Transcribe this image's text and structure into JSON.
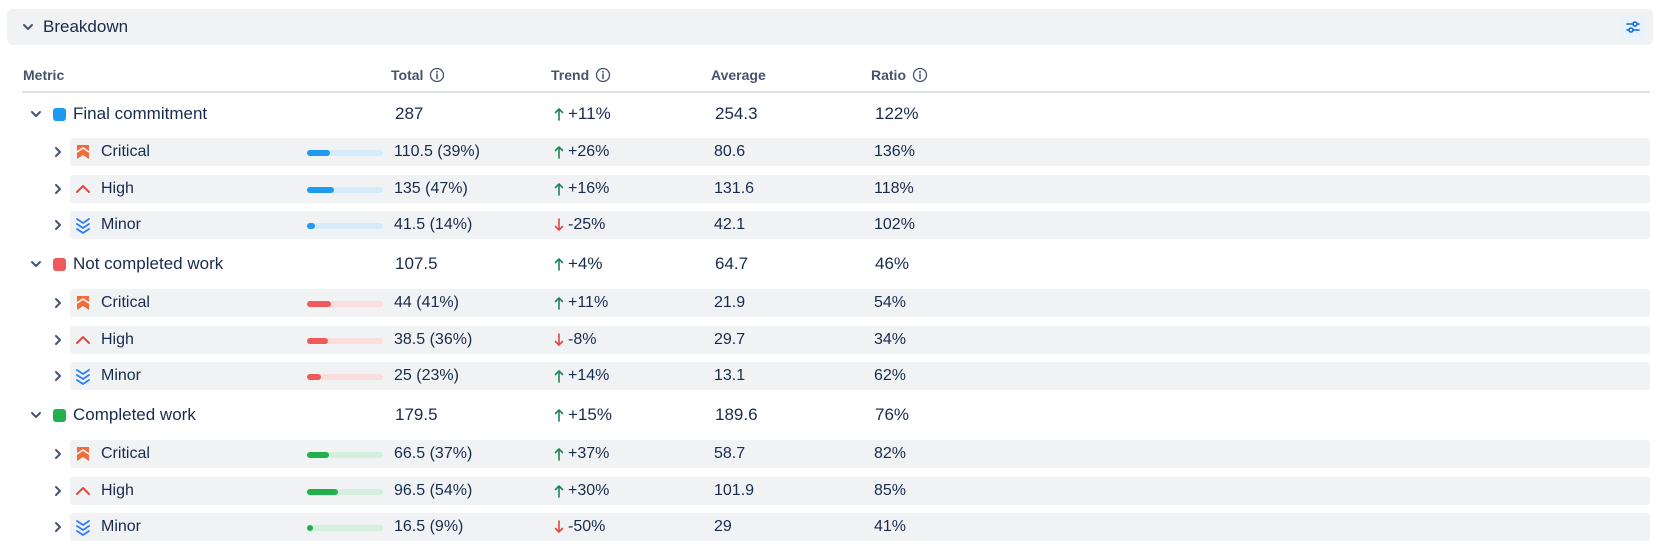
{
  "panel": {
    "title": "Breakdown",
    "settings_icon": "sliders-icon"
  },
  "columns": {
    "metric": "Metric",
    "total": "Total",
    "trend": "Trend",
    "average": "Average",
    "ratio": "Ratio"
  },
  "colors": {
    "blue": "#1d9bf0",
    "blue_track": "#d5ecfb",
    "red": "#ef5b5b",
    "red_track": "#fadede",
    "green": "#22b04b",
    "green_track": "#d4efdc",
    "trend_up": "#1f845a",
    "trend_down": "#e2483d",
    "critical_icon": "#f26b3a",
    "high_icon": "#e2483d",
    "minor_icon": "#2d7ff9"
  },
  "groups": [
    {
      "name": "Final commitment",
      "color": "blue",
      "total": "287",
      "trend": "+11%",
      "trend_dir": "up",
      "average": "254.3",
      "ratio": "122%",
      "rows": [
        {
          "priority": "Critical",
          "icon": "priority-critical-icon",
          "share": 0.39,
          "total": "110.5 (39%)",
          "trend": "+26%",
          "trend_dir": "up",
          "average": "80.6",
          "ratio": "136%"
        },
        {
          "priority": "High",
          "icon": "priority-high-icon",
          "share": 0.47,
          "total": "135 (47%)",
          "trend": "+16%",
          "trend_dir": "up",
          "average": "131.6",
          "ratio": "118%"
        },
        {
          "priority": "Minor",
          "icon": "priority-minor-icon",
          "share": 0.14,
          "total": "41.5 (14%)",
          "trend": "-25%",
          "trend_dir": "down",
          "average": "42.1",
          "ratio": "102%"
        }
      ]
    },
    {
      "name": "Not completed work",
      "color": "red",
      "total": "107.5",
      "trend": "+4%",
      "trend_dir": "up",
      "average": "64.7",
      "ratio": "46%",
      "rows": [
        {
          "priority": "Critical",
          "icon": "priority-critical-icon",
          "share": 0.41,
          "total": "44 (41%)",
          "trend": "+11%",
          "trend_dir": "up",
          "average": "21.9",
          "ratio": "54%"
        },
        {
          "priority": "High",
          "icon": "priority-high-icon",
          "share": 0.36,
          "total": "38.5 (36%)",
          "trend": "-8%",
          "trend_dir": "down",
          "average": "29.7",
          "ratio": "34%"
        },
        {
          "priority": "Minor",
          "icon": "priority-minor-icon",
          "share": 0.23,
          "total": "25 (23%)",
          "trend": "+14%",
          "trend_dir": "up",
          "average": "13.1",
          "ratio": "62%"
        }
      ]
    },
    {
      "name": "Completed work",
      "color": "green",
      "total": "179.5",
      "trend": "+15%",
      "trend_dir": "up",
      "average": "189.6",
      "ratio": "76%",
      "rows": [
        {
          "priority": "Critical",
          "icon": "priority-critical-icon",
          "share": 0.37,
          "total": "66.5 (37%)",
          "trend": "+37%",
          "trend_dir": "up",
          "average": "58.7",
          "ratio": "82%"
        },
        {
          "priority": "High",
          "icon": "priority-high-icon",
          "share": 0.54,
          "total": "96.5 (54%)",
          "trend": "+30%",
          "trend_dir": "up",
          "average": "101.9",
          "ratio": "85%"
        },
        {
          "priority": "Minor",
          "icon": "priority-minor-icon",
          "share": 0.09,
          "total": "16.5 (9%)",
          "trend": "-50%",
          "trend_dir": "down",
          "average": "29",
          "ratio": "41%"
        }
      ]
    }
  ]
}
